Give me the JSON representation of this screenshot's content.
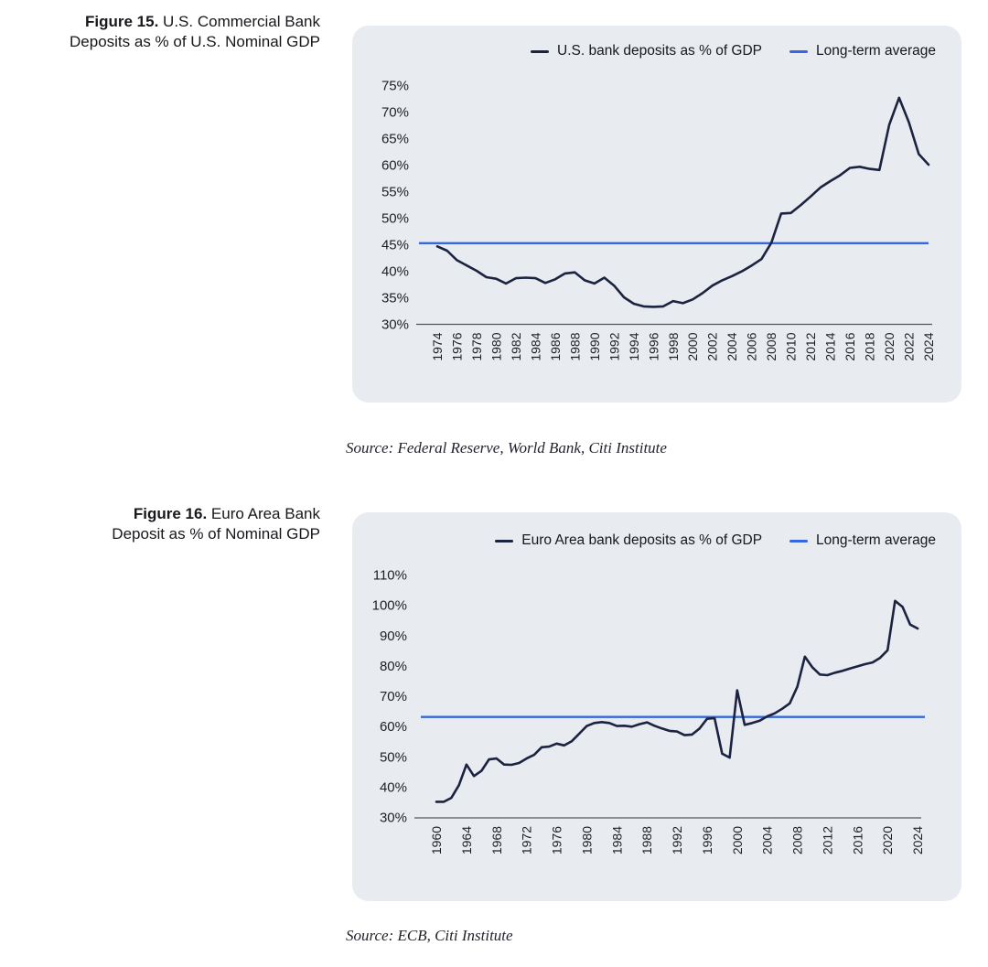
{
  "figures": [
    {
      "label": "Figure 15.",
      "title_lines": [
        " U.S. Commercial Bank",
        "Deposits as % of U.S. Nominal GDP"
      ],
      "source": "Source: Federal Reserve, World Bank, Citi Institute"
    },
    {
      "label": "Figure 16.",
      "title_lines": [
        " Euro Area Bank",
        "Deposit as % of Nominal GDP"
      ],
      "source": "Source: ECB, Citi Institute"
    }
  ],
  "colors": {
    "series_line": "#1b2340",
    "average_line": "#3667e0",
    "panel_background": "#e8ebef",
    "axis": "#55575c",
    "text": "#17171c"
  },
  "chart_data": [
    {
      "type": "line",
      "title": "U.S. Commercial Bank Deposits as % of U.S. Nominal GDP",
      "xlabel": "",
      "ylabel": "",
      "grid": false,
      "legend_position": "top-right",
      "ylim": [
        30,
        77
      ],
      "yticks": [
        30,
        35,
        40,
        45,
        50,
        55,
        60,
        65,
        70,
        75
      ],
      "ytick_suffix": "%",
      "xticks": [
        1974,
        1976,
        1978,
        1980,
        1982,
        1984,
        1986,
        1988,
        1990,
        1992,
        1994,
        1996,
        1998,
        2000,
        2002,
        2004,
        2006,
        2008,
        2010,
        2012,
        2014,
        2016,
        2018,
        2020,
        2022,
        2024
      ],
      "x": [
        1974,
        1975,
        1976,
        1977,
        1978,
        1979,
        1980,
        1981,
        1982,
        1983,
        1984,
        1985,
        1986,
        1987,
        1988,
        1989,
        1990,
        1991,
        1992,
        1993,
        1994,
        1995,
        1996,
        1997,
        1998,
        1999,
        2000,
        2001,
        2002,
        2003,
        2004,
        2005,
        2006,
        2007,
        2008,
        2009,
        2010,
        2011,
        2012,
        2013,
        2014,
        2015,
        2016,
        2017,
        2018,
        2019,
        2020,
        2021,
        2022,
        2023,
        2024
      ],
      "series": [
        {
          "name": "U.S. bank deposits as % of GDP",
          "color": "#1b2340",
          "values": [
            44.6,
            43.8,
            42.0,
            41.0,
            40.0,
            38.8,
            38.5,
            37.6,
            38.6,
            38.7,
            38.6,
            37.7,
            38.4,
            39.5,
            39.7,
            38.2,
            37.6,
            38.7,
            37.2,
            35.0,
            33.8,
            33.3,
            33.2,
            33.3,
            34.3,
            33.9,
            34.6,
            35.8,
            37.2,
            38.2,
            39.0,
            39.9,
            41.0,
            42.2,
            45.3,
            50.8,
            50.9,
            52.4,
            54.0,
            55.7,
            56.9,
            58.0,
            59.4,
            59.6,
            59.2,
            59.0,
            67.5,
            72.6,
            68.0,
            62.0,
            60.0
          ]
        }
      ],
      "reference_line": {
        "name": "Long-term average",
        "value": 45.2,
        "color": "#3667e0"
      }
    },
    {
      "type": "line",
      "title": "Euro Area Bank Deposit as % of Nominal GDP",
      "xlabel": "",
      "ylabel": "",
      "grid": false,
      "legend_position": "top-right",
      "ylim": [
        30,
        113
      ],
      "yticks": [
        30,
        40,
        50,
        60,
        70,
        80,
        90,
        100,
        110
      ],
      "ytick_suffix": "%",
      "xticks": [
        1960,
        1964,
        1968,
        1972,
        1976,
        1980,
        1984,
        1988,
        1992,
        1996,
        2000,
        2004,
        2008,
        2012,
        2016,
        2020,
        2024
      ],
      "x": [
        1960,
        1961,
        1962,
        1963,
        1964,
        1965,
        1966,
        1967,
        1968,
        1969,
        1970,
        1971,
        1972,
        1973,
        1974,
        1975,
        1976,
        1977,
        1978,
        1979,
        1980,
        1981,
        1982,
        1983,
        1984,
        1985,
        1986,
        1987,
        1988,
        1989,
        1990,
        1991,
        1992,
        1993,
        1994,
        1995,
        1996,
        1997,
        1998,
        1999,
        2000,
        2001,
        2002,
        2003,
        2004,
        2005,
        2006,
        2007,
        2008,
        2009,
        2010,
        2011,
        2012,
        2013,
        2014,
        2015,
        2016,
        2017,
        2018,
        2019,
        2020,
        2021,
        2022,
        2023,
        2024
      ],
      "series": [
        {
          "name": "Euro Area bank deposits as % of GDP",
          "color": "#1b2340",
          "values": [
            35.0,
            35.0,
            36.3,
            40.5,
            47.3,
            43.5,
            45.2,
            49.0,
            49.3,
            47.3,
            47.2,
            47.8,
            49.3,
            50.5,
            53.0,
            53.2,
            54.2,
            53.6,
            55.0,
            57.5,
            60.0,
            61.0,
            61.3,
            61.0,
            60.0,
            60.1,
            59.8,
            60.6,
            61.2,
            60.1,
            59.2,
            58.4,
            58.2,
            57.0,
            57.2,
            59.2,
            62.4,
            62.6,
            50.9,
            49.6,
            71.8,
            60.4,
            61.0,
            61.8,
            63.2,
            64.2,
            65.7,
            67.5,
            73.0,
            82.9,
            79.4,
            77.0,
            76.8,
            77.6,
            78.2,
            79.0,
            79.7,
            80.4,
            81.0,
            82.5,
            85.0,
            101.3,
            99.3,
            93.5,
            92.2
          ]
        }
      ],
      "reference_line": {
        "name": "Long-term average",
        "value": 63.0,
        "color": "#3667e0"
      }
    }
  ]
}
